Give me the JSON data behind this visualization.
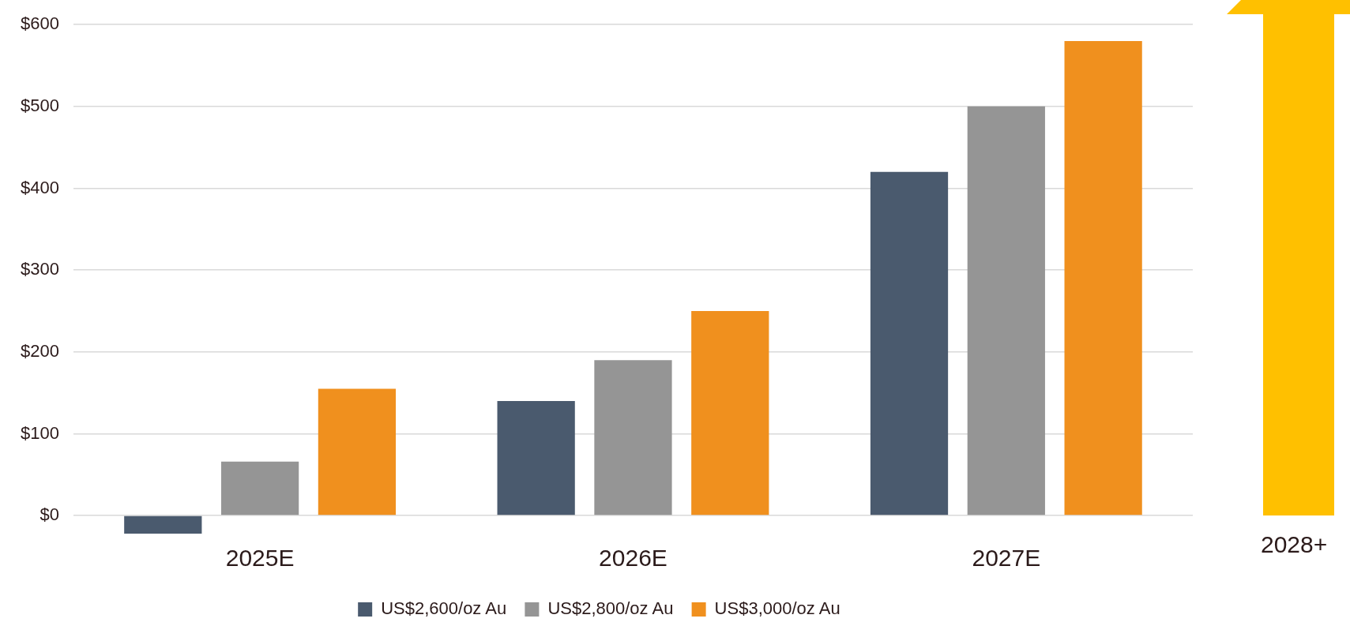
{
  "chart_data": {
    "type": "bar",
    "categories": [
      "2025E",
      "2026E",
      "2027E"
    ],
    "series": [
      {
        "name": "US$2,600/oz Au",
        "color": "#4a5a6e",
        "values": [
          -22,
          140,
          420
        ]
      },
      {
        "name": "US$2,800/oz Au",
        "color": "#959595",
        "values": [
          66,
          190,
          500
        ]
      },
      {
        "name": "US$3,000/oz Au",
        "color": "#f0901e",
        "values": [
          155,
          250,
          580
        ]
      }
    ],
    "ylim": [
      -25,
      600
    ],
    "yticks": [
      {
        "value": 0,
        "label": "$0"
      },
      {
        "value": 100,
        "label": "$100"
      },
      {
        "value": 200,
        "label": "$200"
      },
      {
        "value": 300,
        "label": "$300"
      },
      {
        "value": 400,
        "label": "$400"
      },
      {
        "value": 500,
        "label": "$500"
      },
      {
        "value": 600,
        "label": "$600"
      }
    ],
    "grid": "y",
    "legend": "bottom",
    "annotations": [
      "2028+"
    ]
  }
}
